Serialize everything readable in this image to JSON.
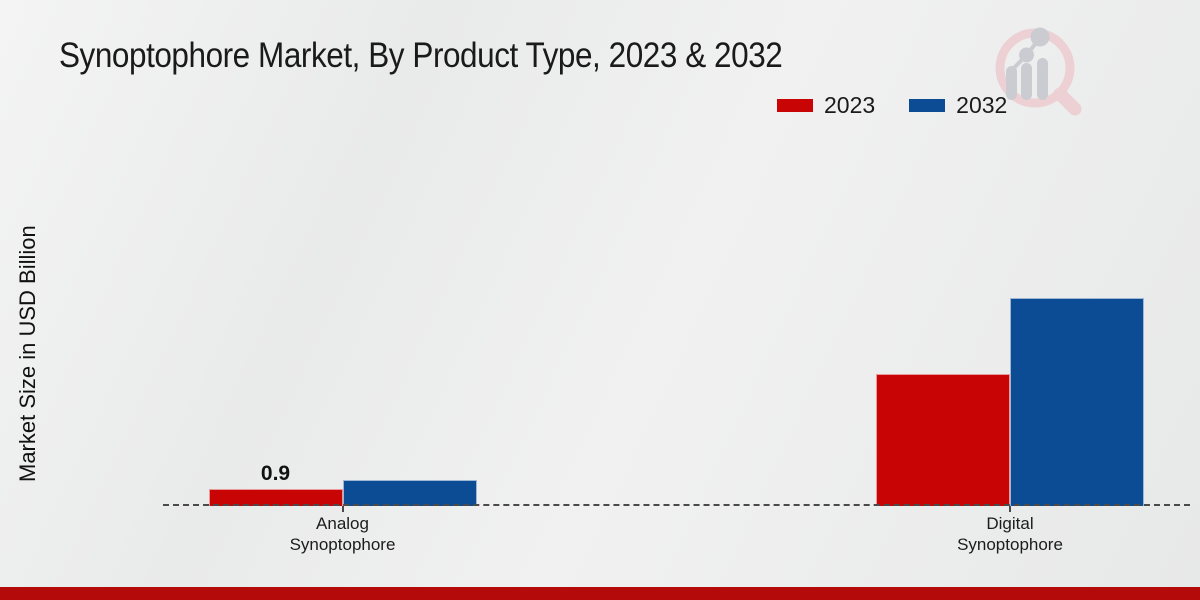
{
  "page": {
    "title": "Synoptophore Market, By Product Type, 2023 & 2032",
    "background_color": "#ebecec",
    "bottom_stripe_color": "#b40a0a"
  },
  "legend": {
    "items": [
      {
        "label": "2023",
        "color": "#c90404"
      },
      {
        "label": "2032",
        "color": "#0c4c94"
      }
    ]
  },
  "logo": {
    "name": "magnifier-bar-chart-watermark",
    "ring_color": "#ecd0d4",
    "bars_color": "#cbccd2"
  },
  "chart_data": {
    "type": "bar",
    "title": "Synoptophore Market, By Product Type, 2023 & 2032",
    "xlabel": "",
    "ylabel": "Market Size in USD Billion",
    "categories": [
      "Analog Synoptophore",
      "Digital Synoptophore"
    ],
    "series": [
      {
        "name": "2023",
        "color": "#c90404",
        "values": [
          0.9,
          7.2
        ]
      },
      {
        "name": "2032",
        "color": "#0c4c94",
        "values": [
          1.4,
          11.3
        ]
      }
    ],
    "bar_labels": [
      {
        "series_index": 0,
        "category_index": 0,
        "text": "0.9"
      }
    ],
    "ylim": [
      0,
      12
    ],
    "grid": false,
    "legend_position": "top-right",
    "baseline_style": "dashed"
  }
}
